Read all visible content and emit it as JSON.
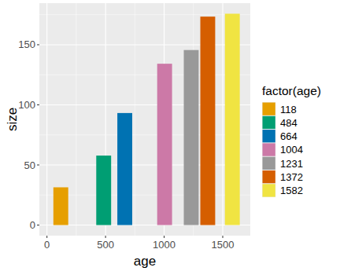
{
  "chart_data": {
    "type": "bar",
    "x_label": "age",
    "y_label": "size",
    "legend_title": "factor(age)",
    "x": [
      118,
      484,
      664,
      1004,
      1231,
      1372,
      1582
    ],
    "values": [
      31.4,
      57.8,
      93.2,
      134.2,
      145.6,
      173.4,
      175.8
    ],
    "colors": [
      "#E69F00",
      "#009E73",
      "#0072B2",
      "#CC79A7",
      "#999999",
      "#D55E00",
      "#F0E442"
    ],
    "xlim": [
      -65,
      1735
    ],
    "xticks": [
      0,
      500,
      1000,
      1500
    ],
    "ylim": [
      -8.8,
      184.6
    ],
    "yticks": [
      0,
      50,
      100,
      150
    ],
    "grid": true,
    "legend": "right"
  }
}
